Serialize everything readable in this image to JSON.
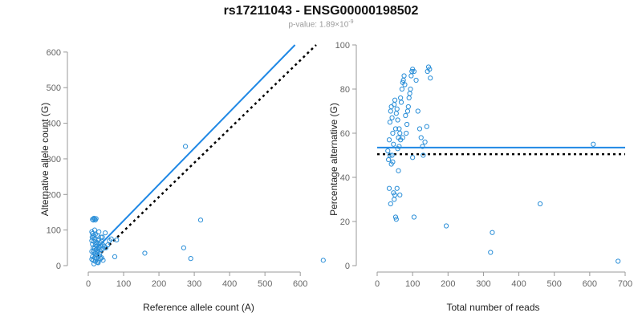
{
  "title": "rs17211043 - ENSG00000198502",
  "subtitle": {
    "prefix": "p-value: 1.89×10",
    "exp": "-9"
  },
  "colors": {
    "points": "#2b8fd8",
    "fit_line": "#1f88e5",
    "reference_line": "#000000",
    "axis": "#999999",
    "tick_text": "#666666"
  },
  "chart_data": [
    {
      "type": "scatter",
      "title": "",
      "xlabel": "Reference allele count (A)",
      "ylabel": "Alternative allele count (G)",
      "xlim": [
        0,
        670
      ],
      "ylim": [
        0,
        620
      ],
      "xticks": [
        0,
        100,
        200,
        300,
        400,
        500,
        600
      ],
      "yticks": [
        0,
        100,
        200,
        300,
        400,
        500,
        600
      ],
      "grid": false,
      "lines": [
        {
          "name": "fit",
          "style": "solid",
          "x": [
            25,
            585
          ],
          "y": [
            50,
            620
          ]
        },
        {
          "name": "reference",
          "style": "dotted",
          "x": [
            25,
            645
          ],
          "y": [
            25,
            620
          ]
        }
      ],
      "points": [
        [
          12,
          130
        ],
        [
          14,
          128
        ],
        [
          16,
          133
        ],
        [
          18,
          131
        ],
        [
          20,
          128
        ],
        [
          22,
          132
        ],
        [
          10,
          95
        ],
        [
          12,
          90
        ],
        [
          15,
          85
        ],
        [
          20,
          88
        ],
        [
          11,
          80
        ],
        [
          14,
          78
        ],
        [
          18,
          75
        ],
        [
          10,
          70
        ],
        [
          16,
          68
        ],
        [
          12,
          60
        ],
        [
          20,
          58
        ],
        [
          24,
          55
        ],
        [
          14,
          50
        ],
        [
          18,
          48
        ],
        [
          22,
          45
        ],
        [
          10,
          40
        ],
        [
          15,
          38
        ],
        [
          20,
          35
        ],
        [
          25,
          30
        ],
        [
          12,
          25
        ],
        [
          18,
          22
        ],
        [
          22,
          20
        ],
        [
          14,
          15
        ],
        [
          20,
          12
        ],
        [
          26,
          10
        ],
        [
          16,
          5
        ],
        [
          10,
          18
        ],
        [
          30,
          50
        ],
        [
          28,
          42
        ],
        [
          25,
          38
        ],
        [
          32,
          28
        ],
        [
          35,
          20
        ],
        [
          30,
          15
        ],
        [
          28,
          8
        ],
        [
          24,
          62
        ],
        [
          28,
          70
        ],
        [
          30,
          75
        ],
        [
          34,
          65
        ],
        [
          38,
          68
        ],
        [
          40,
          60
        ],
        [
          45,
          55
        ],
        [
          42,
          48
        ],
        [
          36,
          45
        ],
        [
          50,
          50
        ],
        [
          55,
          58
        ],
        [
          48,
          92
        ],
        [
          35,
          55
        ],
        [
          26,
          48
        ],
        [
          33,
          35
        ],
        [
          38,
          22
        ],
        [
          42,
          15
        ],
        [
          20,
          28
        ],
        [
          16,
          42
        ],
        [
          22,
          65
        ],
        [
          60,
          70
        ],
        [
          65,
          75
        ],
        [
          80,
          72
        ],
        [
          40,
          80
        ],
        [
          75,
          25
        ],
        [
          30,
          95
        ],
        [
          18,
          100
        ],
        [
          25,
          85
        ],
        [
          36,
          80
        ],
        [
          160,
          35
        ],
        [
          275,
          335
        ],
        [
          270,
          50
        ],
        [
          290,
          20
        ],
        [
          318,
          128
        ],
        [
          665,
          15
        ]
      ]
    },
    {
      "type": "scatter",
      "title": "",
      "xlabel": "Total number of reads",
      "ylabel": "Percentage alternative (G)",
      "xlim": [
        0,
        700
      ],
      "ylim": [
        0,
        100
      ],
      "xticks": [
        0,
        100,
        200,
        300,
        400,
        500,
        600,
        700
      ],
      "yticks": [
        0,
        20,
        40,
        60,
        80,
        100
      ],
      "grid": false,
      "lines": [
        {
          "name": "fit",
          "style": "solid",
          "x": [
            0,
            700
          ],
          "y": [
            53.5,
            53.5
          ]
        },
        {
          "name": "reference",
          "style": "dotted",
          "x": [
            0,
            700
          ],
          "y": [
            50.5,
            50.5
          ]
        }
      ],
      "points": [
        [
          30,
          52
        ],
        [
          32,
          48
        ],
        [
          34,
          57
        ],
        [
          36,
          65
        ],
        [
          38,
          70
        ],
        [
          40,
          72
        ],
        [
          42,
          67
        ],
        [
          44,
          60
        ],
        [
          46,
          55
        ],
        [
          48,
          73
        ],
        [
          50,
          75
        ],
        [
          52,
          62
        ],
        [
          54,
          69
        ],
        [
          56,
          71
        ],
        [
          58,
          66
        ],
        [
          60,
          58
        ],
        [
          62,
          54
        ],
        [
          64,
          60
        ],
        [
          66,
          76
        ],
        [
          68,
          74
        ],
        [
          70,
          80
        ],
        [
          72,
          83
        ],
        [
          74,
          84
        ],
        [
          76,
          86
        ],
        [
          78,
          82
        ],
        [
          80,
          68
        ],
        [
          82,
          60
        ],
        [
          84,
          64
        ],
        [
          86,
          70
        ],
        [
          88,
          72
        ],
        [
          90,
          76
        ],
        [
          92,
          78
        ],
        [
          94,
          80
        ],
        [
          96,
          86
        ],
        [
          98,
          88
        ],
        [
          100,
          89
        ],
        [
          104,
          88
        ],
        [
          110,
          84
        ],
        [
          115,
          70
        ],
        [
          120,
          62
        ],
        [
          124,
          58
        ],
        [
          128,
          54
        ],
        [
          135,
          56
        ],
        [
          140,
          63
        ],
        [
          142,
          88
        ],
        [
          145,
          90
        ],
        [
          148,
          89
        ],
        [
          150,
          85
        ],
        [
          38,
          28
        ],
        [
          40,
          46
        ],
        [
          44,
          47
        ],
        [
          46,
          33
        ],
        [
          48,
          30
        ],
        [
          50,
          32
        ],
        [
          52,
          22
        ],
        [
          54,
          21
        ],
        [
          56,
          35
        ],
        [
          60,
          43
        ],
        [
          64,
          32
        ],
        [
          100,
          49
        ],
        [
          104,
          22
        ],
        [
          130,
          50
        ],
        [
          195,
          18
        ],
        [
          320,
          6
        ],
        [
          325,
          15
        ],
        [
          460,
          28
        ],
        [
          610,
          55
        ],
        [
          680,
          2
        ],
        [
          34,
          35
        ],
        [
          36,
          50
        ],
        [
          42,
          50
        ],
        [
          62,
          62
        ],
        [
          66,
          57
        ],
        [
          72,
          58
        ],
        [
          58,
          53
        ]
      ]
    }
  ]
}
